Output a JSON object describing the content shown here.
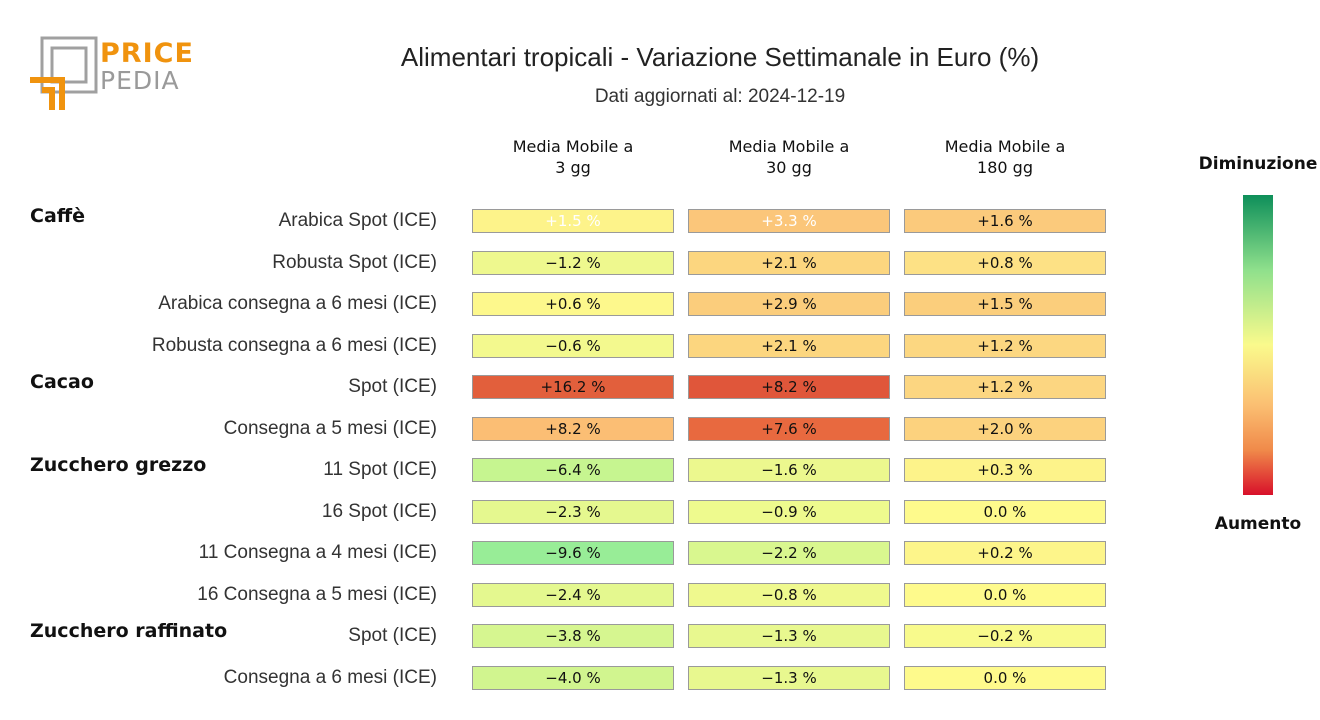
{
  "logo": {
    "line1": "PRICE",
    "line2": "PEDIA",
    "orange": "#f0930e",
    "gray": "#a0a0a0"
  },
  "chart_data": {
    "type": "heatmap",
    "title": "Alimentari tropicali - Variazione Settimanale in Euro (%)",
    "subtitle": "Dati aggiornati al: 2024-12-19",
    "columns": [
      {
        "line1": "Media Mobile a",
        "line2": "3 gg"
      },
      {
        "line1": "Media Mobile a",
        "line2": "30 gg"
      },
      {
        "line1": "Media Mobile a",
        "line2": "180 gg"
      }
    ],
    "groups": [
      {
        "name": "Caffè",
        "rows": [
          {
            "label": "Arabica Spot (ICE)",
            "values": [
              1.5,
              3.3,
              1.6
            ],
            "texts": [
              "+1.5 %",
              "+3.3 %",
              "+1.6 %"
            ]
          },
          {
            "label": "Robusta Spot (ICE)",
            "values": [
              -1.2,
              2.1,
              0.8
            ],
            "texts": [
              "−1.2 %",
              "+2.1 %",
              "+0.8 %"
            ]
          },
          {
            "label": "Arabica consegna a 6 mesi (ICE)",
            "values": [
              0.6,
              2.9,
              1.5
            ],
            "texts": [
              "+0.6 %",
              "+2.9 %",
              "+1.5 %"
            ]
          },
          {
            "label": "Robusta consegna a 6 mesi (ICE)",
            "values": [
              -0.6,
              2.1,
              1.2
            ],
            "texts": [
              "−0.6 %",
              "+2.1 %",
              "+1.2 %"
            ]
          }
        ]
      },
      {
        "name": "Cacao",
        "rows": [
          {
            "label": "Spot (ICE)",
            "values": [
              16.2,
              8.2,
              1.2
            ],
            "texts": [
              "+16.2 %",
              "+8.2 %",
              "+1.2 %"
            ]
          },
          {
            "label": "Consegna a 5 mesi (ICE)",
            "values": [
              8.2,
              7.6,
              2.0
            ],
            "texts": [
              "+8.2 %",
              "+7.6 %",
              "+2.0 %"
            ]
          }
        ]
      },
      {
        "name": "Zucchero grezzo",
        "rows": [
          {
            "label": "11 Spot (ICE)",
            "values": [
              -6.4,
              -1.6,
              0.3
            ],
            "texts": [
              "−6.4 %",
              "−1.6 %",
              "+0.3 %"
            ]
          },
          {
            "label": "16 Spot (ICE)",
            "values": [
              -2.3,
              -0.9,
              0.0
            ],
            "texts": [
              "−2.3 %",
              "−0.9 %",
              "0.0 %"
            ]
          },
          {
            "label": "11 Consegna a 4 mesi (ICE)",
            "values": [
              -9.6,
              -2.2,
              0.2
            ],
            "texts": [
              "−9.6 %",
              "−2.2 %",
              "+0.2 %"
            ]
          },
          {
            "label": "16 Consegna a 5 mesi (ICE)",
            "values": [
              -2.4,
              -0.8,
              0.0
            ],
            "texts": [
              "−2.4 %",
              "−0.8 %",
              "0.0 %"
            ]
          }
        ]
      },
      {
        "name": "Zucchero raffinato",
        "rows": [
          {
            "label": "Spot (ICE)",
            "values": [
              -3.8,
              -1.3,
              -0.2
            ],
            "texts": [
              "−3.8 %",
              "−1.3 %",
              "−0.2 %"
            ]
          },
          {
            "label": "Consegna a 6 mesi (ICE)",
            "values": [
              -4.0,
              -1.3,
              0.0
            ],
            "texts": [
              "−4.0 %",
              "−1.3 %",
              "0.0 %"
            ]
          }
        ]
      }
    ],
    "cell_colors": [
      [
        "#fdf38a",
        "#fbc67a",
        "#fbca7c"
      ],
      [
        "#eef88e",
        "#fcd67f",
        "#fde185"
      ],
      [
        "#fdf88c",
        "#fbcd7c",
        "#fbce7c"
      ],
      [
        "#f3f98e",
        "#fcd67f",
        "#fcd781"
      ],
      [
        "#e25f3c",
        "#e0563a",
        "#fcd681"
      ],
      [
        "#fbbe74",
        "#e8693f",
        "#fcd27e"
      ],
      [
        "#c6f590",
        "#ecf88e",
        "#fdf38a"
      ],
      [
        "#e5f88f",
        "#eefa8e",
        "#fefa8c"
      ],
      [
        "#98ed97",
        "#d9f78f",
        "#fdf58a"
      ],
      [
        "#e4f88f",
        "#eff98e",
        "#fefa8c"
      ],
      [
        "#d6f690",
        "#e8f88f",
        "#f8fa8c"
      ],
      [
        "#d1f58f",
        "#e8f88f",
        "#fefa8c"
      ]
    ],
    "light_text": [
      [
        true,
        true,
        false
      ]
    ],
    "legend": {
      "top": "Diminuzione",
      "bottom": "Aumento"
    }
  }
}
